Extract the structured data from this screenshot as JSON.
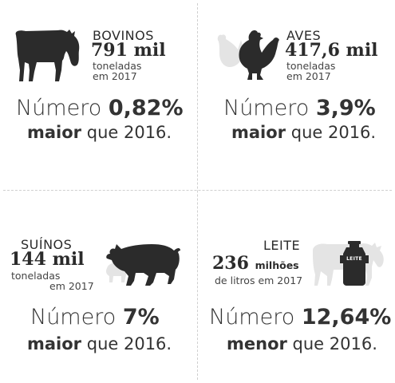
{
  "bovinos": {
    "category": "BOVINOS",
    "amount": "791 mil",
    "unit_line1": "toneladas",
    "unit_line2": "em 2017",
    "number_word": "Número",
    "percent": "0,82%",
    "direction": "maior",
    "compare": "que 2016."
  },
  "aves": {
    "category": "AVES",
    "amount": "417,6 mil",
    "unit_line1": "toneladas",
    "unit_line2": "em 2017",
    "number_word": "Número",
    "percent": "3,9%",
    "direction": "maior",
    "compare": "que 2016."
  },
  "suinos": {
    "category": "SUÍNOS",
    "amount": "144 mil",
    "unit_line1": "toneladas",
    "unit_line2": "em 2017",
    "number_word": "Número",
    "percent": "7%",
    "direction": "maior",
    "compare": "que 2016."
  },
  "leite": {
    "category": "LEITE",
    "amount": "236",
    "amount_unit": "milhões",
    "unit_line1": "de litros em 2017",
    "can_label": "LEITE",
    "number_word": "Número",
    "percent": "12,64%",
    "direction": "menor",
    "compare": "que 2016."
  },
  "colors": {
    "icon_dark": "#2b2b2b",
    "icon_light": "#e4e4e4",
    "divider": "#cfcfcf"
  }
}
